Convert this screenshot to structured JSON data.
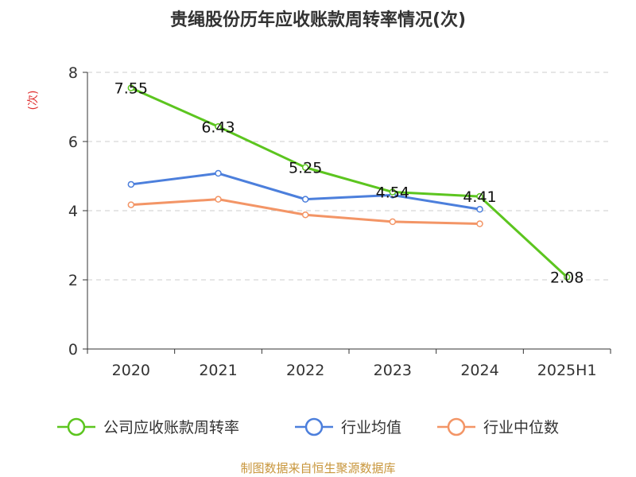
{
  "chart_data": {
    "type": "line",
    "title": "贵绳股份历年应收账款周转率情况(次)",
    "ylabel": "(次)",
    "categories": [
      "2020",
      "2021",
      "2022",
      "2023",
      "2024",
      "2025H1"
    ],
    "ylim": [
      0,
      8
    ],
    "yticks": [
      0,
      2,
      4,
      6,
      8
    ],
    "grid": true,
    "legend_position": "bottom",
    "series": [
      {
        "name": "公司应收账款周转率",
        "color": "#5cc51f",
        "values": [
          7.55,
          6.43,
          5.25,
          4.54,
          4.41,
          2.08
        ],
        "data_labels": [
          "7.55",
          "6.43",
          "5.25",
          "4.54",
          "4.41",
          "2.08"
        ]
      },
      {
        "name": "行业均值",
        "color": "#4c7fdc",
        "values": [
          4.76,
          5.08,
          4.33,
          4.45,
          4.04,
          null
        ]
      },
      {
        "name": "行业中位数",
        "color": "#f39566",
        "values": [
          4.17,
          4.33,
          3.88,
          3.68,
          3.62,
          null
        ]
      }
    ]
  },
  "source_text": "制图数据来自恒生聚源数据库"
}
